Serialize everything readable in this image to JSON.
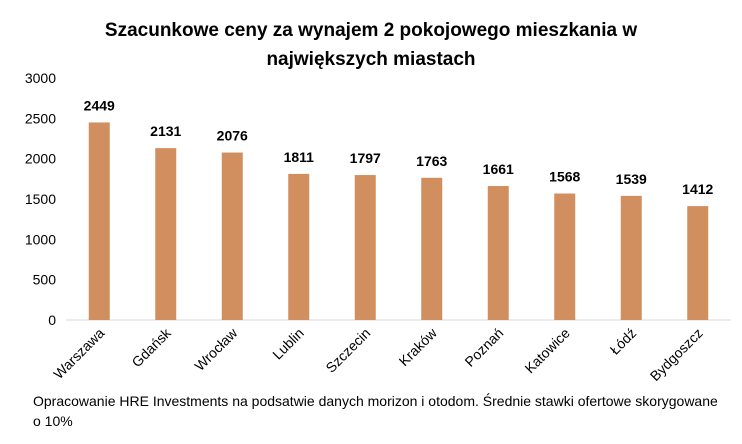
{
  "chart_data": {
    "type": "bar",
    "title_line1": "Szacunkowe ceny za wynajem 2 pokojowego mieszkania w",
    "title_line2": "największych miastach",
    "categories": [
      "Warszawa",
      "Gdańsk",
      "Wrocław",
      "Lublin",
      "Szczecin",
      "Kraków",
      "Poznań",
      "Katowice",
      "Łódź",
      "Bydgoszcz"
    ],
    "values": [
      2449,
      2131,
      2076,
      1811,
      1797,
      1763,
      1661,
      1568,
      1539,
      1412
    ],
    "ylim": [
      0,
      3000
    ],
    "yticks": [
      0,
      500,
      1000,
      1500,
      2000,
      2500,
      3000
    ],
    "grid": false,
    "bar_color": "#d18f5f"
  },
  "footnote": "Opracowanie HRE Investments na podsatwie danych morizon i otodom. Średnie stawki ofertowe skorygowane o 10%"
}
